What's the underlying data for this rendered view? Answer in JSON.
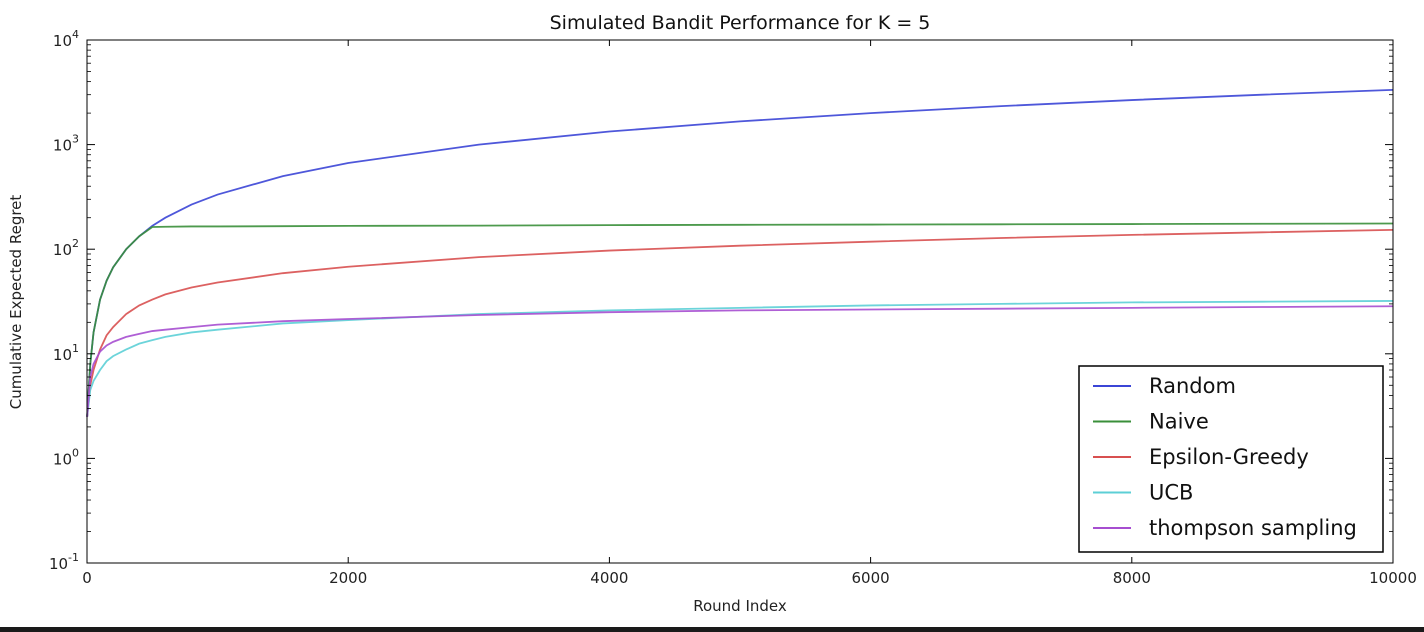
{
  "chart_data": {
    "type": "line",
    "title": "Simulated Bandit Performance for K = 5",
    "xlabel": "Round Index",
    "ylabel": "Cumulative Expected Regret",
    "xlim": [
      0,
      10000
    ],
    "ylim": [
      0.1,
      10000
    ],
    "yscale": "log",
    "grid": false,
    "legend_position": "lower-right",
    "x_ticks": [
      {
        "value": 0,
        "label": "0"
      },
      {
        "value": 2000,
        "label": "2000"
      },
      {
        "value": 4000,
        "label": "4000"
      },
      {
        "value": 6000,
        "label": "6000"
      },
      {
        "value": 8000,
        "label": "8000"
      },
      {
        "value": 10000,
        "label": "10000"
      }
    ],
    "y_ticks": [
      {
        "value": 10000,
        "base": "10",
        "exp": "4"
      },
      {
        "value": 1000,
        "base": "10",
        "exp": "3"
      },
      {
        "value": 100,
        "base": "10",
        "exp": "2"
      },
      {
        "value": 10,
        "base": "10",
        "exp": "1"
      },
      {
        "value": 1,
        "base": "10",
        "exp": "0"
      },
      {
        "value": 0.1,
        "base": "10",
        "exp": "-1"
      }
    ],
    "x": [
      1,
      25,
      50,
      100,
      150,
      200,
      300,
      400,
      500,
      600,
      800,
      1000,
      1500,
      2000,
      3000,
      4000,
      5000,
      6000,
      7000,
      8000,
      9000,
      10000
    ],
    "series": [
      {
        "name": "Random",
        "color": "#3b45d6",
        "values": [
          2.5,
          8,
          16,
          33,
          50,
          67,
          100,
          133,
          167,
          200,
          267,
          333,
          500,
          667,
          1000,
          1333,
          1667,
          2000,
          2333,
          2667,
          3000,
          3333
        ]
      },
      {
        "name": "Naive",
        "color": "#3a8f3a",
        "values": [
          2.5,
          8,
          16,
          33,
          50,
          67,
          100,
          133,
          163,
          164,
          165,
          165,
          166,
          167,
          168,
          170,
          171,
          172,
          173,
          174,
          175,
          176
        ]
      },
      {
        "name": "Epsilon-Greedy",
        "color": "#d85050",
        "values": [
          2.5,
          5,
          7,
          11,
          15,
          18,
          24,
          29,
          33,
          37,
          43,
          48,
          59,
          68,
          84,
          97,
          108,
          118,
          128,
          137,
          145,
          153
        ]
      },
      {
        "name": "UCB",
        "color": "#5ccfd6",
        "values": [
          2.5,
          4.5,
          5.5,
          7,
          8.5,
          9.5,
          11,
          12.5,
          13.5,
          14.5,
          16,
          17,
          19.5,
          21,
          24,
          26,
          27.5,
          29,
          30,
          31,
          31.5,
          32
        ]
      },
      {
        "name": "thompson sampling",
        "color": "#a64ed0",
        "values": [
          2.5,
          6,
          8,
          10.5,
          12,
          13,
          14.5,
          15.5,
          16.5,
          17,
          18,
          19,
          20.5,
          21.5,
          23.5,
          25,
          26,
          26.5,
          27,
          27.5,
          28,
          28.5
        ]
      }
    ]
  }
}
